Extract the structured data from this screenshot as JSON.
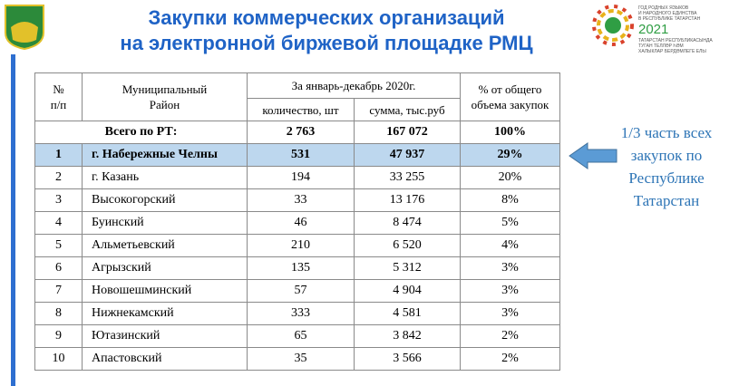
{
  "header": {
    "title": "Закупки коммерческих организаций\nна электронной биржевой площадке РМЦ"
  },
  "emblem_right": {
    "top_text": "ГОД РОДНЫХ ЯЗЫКОВ\nИ НАРОДНОГО ЕДИНСТВА\nВ РЕСПУБЛИКЕ ТАТАРСТАН",
    "year": "2021",
    "bottom_text": "ТАТАРСТАН РЕСПУБЛИКАСЫНДА\nТУГАН ТЕЛЛӘР ҺӘМ\nХАЛЫКЛАР БЕРДӘМЛЕГЕ ЕЛЫ"
  },
  "table": {
    "columns": {
      "no": "№\nп/п",
      "district": "Муниципальный\nРайон",
      "period": "За январь-декабрь 2020г.",
      "count": "количество, шт",
      "sum": "сумма, тыс.руб",
      "share": "% от общего\nобъема закупок"
    },
    "total": [
      "Всего по РТ:",
      "2 763",
      "167 072",
      "100%"
    ],
    "rows": [
      [
        "1",
        "г. Набережные Челны",
        "531",
        "47 937",
        "29%"
      ],
      [
        "2",
        "г. Казань",
        "194",
        "33 255",
        "20%"
      ],
      [
        "3",
        "Высокогорский",
        "33",
        "13 176",
        "8%"
      ],
      [
        "4",
        "Буинский",
        "46",
        "8 474",
        "5%"
      ],
      [
        "5",
        "Альметьевский",
        "210",
        "6 520",
        "4%"
      ],
      [
        "6",
        "Агрызский",
        "135",
        "5 312",
        "3%"
      ],
      [
        "7",
        "Новошешминский",
        "57",
        "4 904",
        "3%"
      ],
      [
        "8",
        "Нижнекамский",
        "333",
        "4 581",
        "3%"
      ],
      [
        "9",
        "Ютазинский",
        "65",
        "3 842",
        "2%"
      ],
      [
        "10",
        "Апастовский",
        "35",
        "3 566",
        "2%"
      ]
    ]
  },
  "callout": "1/3 часть всех\nзакупок по\nРеспублике\nТатарстан"
}
